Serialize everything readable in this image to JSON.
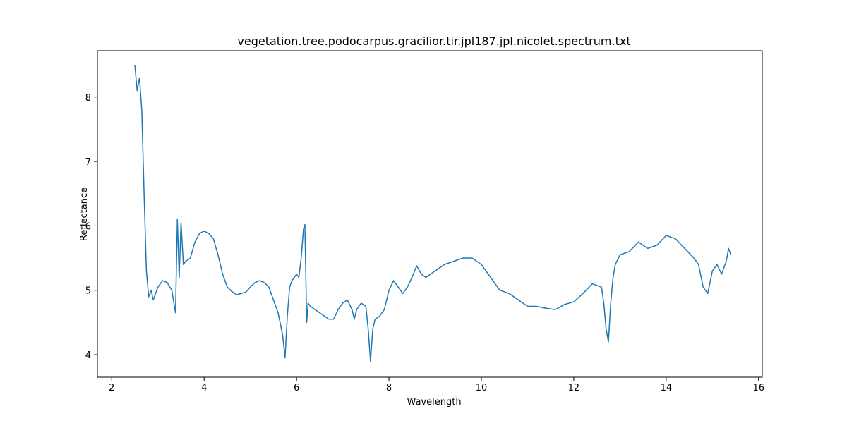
{
  "chart_data": {
    "type": "line",
    "title": "vegetation.tree.podocarpus.gracilior.tir.jpl187.jpl.nicolet.spectrum.txt",
    "x_label": "Wavelength",
    "y_label": "Reflectance",
    "xlim": [
      1.69,
      16.08
    ],
    "ylim": [
      3.65,
      8.72
    ],
    "xticks": [
      2,
      4,
      6,
      8,
      10,
      12,
      14,
      16
    ],
    "yticks": [
      4,
      5,
      6,
      7,
      8
    ],
    "series": [
      {
        "color": "#1f77b4",
        "x": [
          2.5,
          2.55,
          2.6,
          2.65,
          2.7,
          2.75,
          2.8,
          2.85,
          2.9,
          3.0,
          3.1,
          3.2,
          3.3,
          3.38,
          3.42,
          3.46,
          3.5,
          3.55,
          3.6,
          3.7,
          3.8,
          3.9,
          4.0,
          4.1,
          4.2,
          4.3,
          4.4,
          4.5,
          4.6,
          4.7,
          4.8,
          4.9,
          5.0,
          5.1,
          5.2,
          5.3,
          5.4,
          5.5,
          5.6,
          5.7,
          5.75,
          5.8,
          5.85,
          5.9,
          6.0,
          6.05,
          6.1,
          6.15,
          6.18,
          6.22,
          6.25,
          6.3,
          6.4,
          6.5,
          6.6,
          6.7,
          6.8,
          6.9,
          7.0,
          7.1,
          7.2,
          7.25,
          7.3,
          7.4,
          7.5,
          7.55,
          7.6,
          7.65,
          7.7,
          7.8,
          7.9,
          8.0,
          8.1,
          8.2,
          8.3,
          8.4,
          8.5,
          8.6,
          8.7,
          8.8,
          8.9,
          9.0,
          9.2,
          9.4,
          9.6,
          9.8,
          10.0,
          10.2,
          10.3,
          10.4,
          10.6,
          10.8,
          11.0,
          11.2,
          11.4,
          11.6,
          11.8,
          12.0,
          12.2,
          12.4,
          12.6,
          12.65,
          12.7,
          12.75,
          12.8,
          12.85,
          12.9,
          13.0,
          13.2,
          13.4,
          13.6,
          13.8,
          14.0,
          14.2,
          14.4,
          14.6,
          14.7,
          14.8,
          14.9,
          15.0,
          15.1,
          15.2,
          15.3,
          15.35,
          15.4
        ],
        "values": [
          8.5,
          8.1,
          8.3,
          7.8,
          6.5,
          5.3,
          4.9,
          5.0,
          4.85,
          5.05,
          5.15,
          5.12,
          5.0,
          4.65,
          6.1,
          5.2,
          6.05,
          5.4,
          5.45,
          5.5,
          5.75,
          5.88,
          5.92,
          5.88,
          5.8,
          5.55,
          5.25,
          5.05,
          4.98,
          4.93,
          4.95,
          4.97,
          5.05,
          5.12,
          5.15,
          5.12,
          5.05,
          4.85,
          4.65,
          4.3,
          3.95,
          4.6,
          5.05,
          5.15,
          5.25,
          5.2,
          5.5,
          5.95,
          6.02,
          4.5,
          4.8,
          4.75,
          4.7,
          4.65,
          4.6,
          4.55,
          4.55,
          4.7,
          4.8,
          4.85,
          4.7,
          4.55,
          4.7,
          4.8,
          4.75,
          4.4,
          3.9,
          4.4,
          4.55,
          4.6,
          4.7,
          5.0,
          5.15,
          5.05,
          4.95,
          5.05,
          5.2,
          5.38,
          5.25,
          5.2,
          5.25,
          5.3,
          5.4,
          5.45,
          5.5,
          5.5,
          5.4,
          5.2,
          5.1,
          5.0,
          4.95,
          4.85,
          4.75,
          4.75,
          4.72,
          4.7,
          4.78,
          4.82,
          4.95,
          5.1,
          5.05,
          4.8,
          4.4,
          4.2,
          4.8,
          5.2,
          5.4,
          5.55,
          5.6,
          5.75,
          5.65,
          5.7,
          5.85,
          5.8,
          5.65,
          5.5,
          5.4,
          5.05,
          4.95,
          5.3,
          5.4,
          5.25,
          5.45,
          5.65,
          5.55
        ]
      }
    ]
  }
}
